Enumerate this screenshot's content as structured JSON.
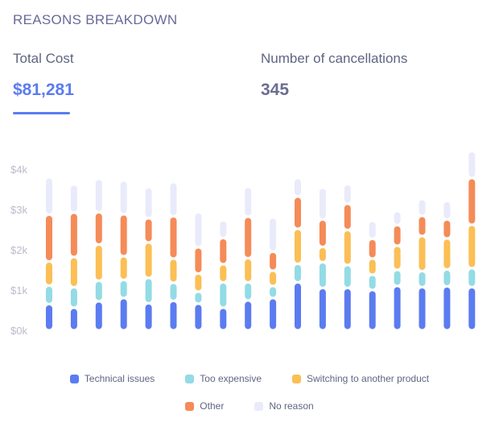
{
  "header": {
    "title": "REASONS BREAKDOWN"
  },
  "metrics": {
    "total_cost": {
      "label": "Total Cost",
      "value": "$81,281"
    },
    "cancellations": {
      "label": "Number of cancellations",
      "value": "345"
    }
  },
  "chart_data": {
    "type": "bar",
    "stacked": true,
    "categories": [
      "",
      "",
      "",
      "",
      "",
      "",
      "",
      "",
      "",
      "",
      "",
      "",
      "",
      "",
      "",
      "",
      "",
      ""
    ],
    "ylim": [
      0,
      4000
    ],
    "yticks": [
      0,
      1000,
      2000,
      3000,
      4000
    ],
    "ytick_labels": [
      "$0k",
      "$1k",
      "$2k",
      "$3k",
      "$4k"
    ],
    "grid": false,
    "legend_position": "bottom",
    "series": [
      {
        "name": "Technical issues",
        "color": "#5b7cf0",
        "values": [
          650,
          560,
          720,
          800,
          670,
          730,
          660,
          560,
          740,
          800,
          1190,
          1050,
          1050,
          1000,
          1100,
          1070,
          1090,
          1070
        ]
      },
      {
        "name": "Too expensive",
        "color": "#93dbe5",
        "values": [
          460,
          510,
          510,
          450,
          630,
          450,
          300,
          630,
          450,
          300,
          460,
          640,
          570,
          380,
          400,
          400,
          420,
          470
        ]
      },
      {
        "name": "Switching to another product",
        "color": "#fbbf55",
        "values": [
          600,
          750,
          900,
          590,
          880,
          600,
          450,
          450,
          600,
          380,
          870,
          380,
          870,
          400,
          600,
          870,
          770,
          1080
        ]
      },
      {
        "name": "Other",
        "color": "#f58b58",
        "values": [
          1160,
          1100,
          800,
          1040,
          600,
          1050,
          650,
          650,
          1030,
          470,
          800,
          680,
          650,
          490,
          510,
          500,
          470,
          1160
        ]
      },
      {
        "name": "No reason",
        "color": "#e9ebfb",
        "values": [
          930,
          700,
          830,
          840,
          770,
          850,
          870,
          440,
          740,
          850,
          460,
          790,
          490,
          450,
          350,
          420,
          460,
          670
        ]
      }
    ]
  },
  "legend": {
    "items": [
      {
        "label": "Technical issues",
        "color": "#5b7cf0"
      },
      {
        "label": "Too expensive",
        "color": "#93dbe5"
      },
      {
        "label": "Switching to another product",
        "color": "#fbbf55"
      },
      {
        "label": "Other",
        "color": "#f58b58"
      },
      {
        "label": "No reason",
        "color": "#e9ebfb"
      }
    ]
  }
}
